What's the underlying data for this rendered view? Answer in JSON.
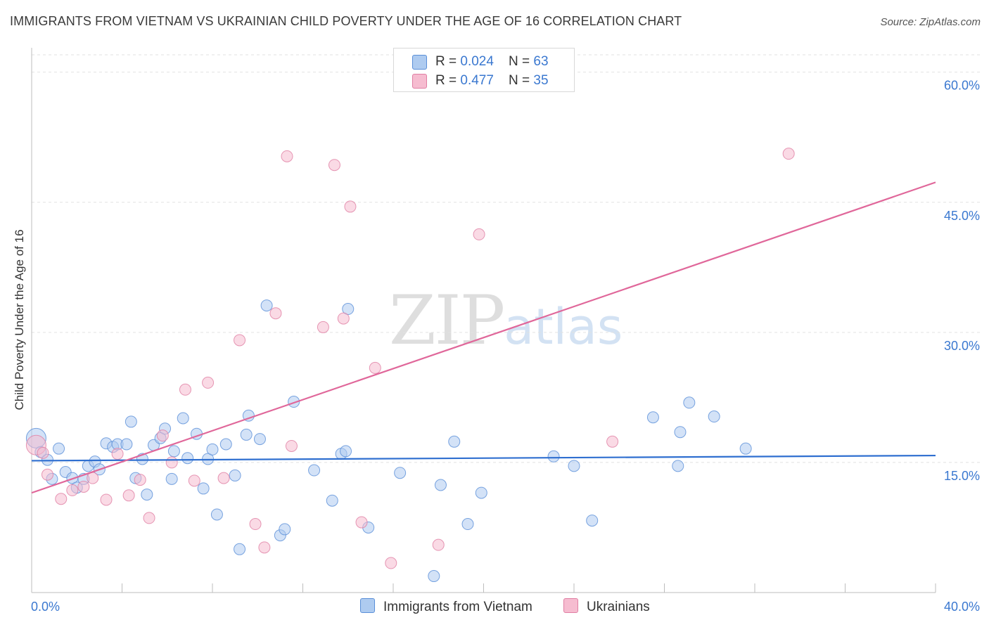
{
  "header": {
    "title": "IMMIGRANTS FROM VIETNAM VS UKRAINIAN CHILD POVERTY UNDER THE AGE OF 16 CORRELATION CHART",
    "source": "Source: ZipAtlas.com"
  },
  "watermark": {
    "zip": "ZIP",
    "atlas": "atlas"
  },
  "legend_top": {
    "rows": [
      {
        "r_label": "R = ",
        "r_value": "0.024",
        "n_label": "N = ",
        "n_value": "63",
        "color": "#aecbf0"
      },
      {
        "r_label": "R = ",
        "r_value": "0.477",
        "n_label": "N = ",
        "n_value": "35",
        "color": "#f6bcd0"
      }
    ]
  },
  "legend_bottom": {
    "items": [
      {
        "label": "Immigrants from Vietnam",
        "color": "#aecbf0"
      },
      {
        "label": "Ukrainians",
        "color": "#f6bcd0"
      }
    ]
  },
  "chart_data": {
    "type": "scatter",
    "title": "IMMIGRANTS FROM VIETNAM VS UKRAINIAN CHILD POVERTY UNDER THE AGE OF 16 CORRELATION CHART",
    "xlabel": "",
    "ylabel": "Child Poverty Under the Age of 16",
    "xlim": [
      0,
      40
    ],
    "ylim": [
      0,
      62
    ],
    "x_tick_labels": [
      "0.0%",
      "40.0%"
    ],
    "y_ticks": [
      15,
      30,
      45,
      60
    ],
    "y_tick_labels": [
      "15.0%",
      "30.0%",
      "45.0%",
      "60.0%"
    ],
    "grid": true,
    "series": [
      {
        "name": "Immigrants from Vietnam",
        "color": "#aecbf0",
        "stroke": "#5a8fd8",
        "trend": {
          "x": [
            0,
            40
          ],
          "y": [
            15.2,
            15.8
          ],
          "color": "#2f6fd0"
        },
        "points": [
          {
            "x": 0.2,
            "y": 17.8,
            "s": "l"
          },
          {
            "x": 0.4,
            "y": 16.2
          },
          {
            "x": 0.7,
            "y": 15.3
          },
          {
            "x": 0.9,
            "y": 13.1
          },
          {
            "x": 1.2,
            "y": 16.6
          },
          {
            "x": 1.5,
            "y": 13.9
          },
          {
            "x": 1.8,
            "y": 13.2
          },
          {
            "x": 2.0,
            "y": 12.1
          },
          {
            "x": 2.3,
            "y": 13.1
          },
          {
            "x": 2.5,
            "y": 14.6
          },
          {
            "x": 2.8,
            "y": 15.1
          },
          {
            "x": 3.0,
            "y": 14.2
          },
          {
            "x": 3.3,
            "y": 17.2
          },
          {
            "x": 3.6,
            "y": 16.8
          },
          {
            "x": 3.8,
            "y": 17.1
          },
          {
            "x": 4.2,
            "y": 17.1
          },
          {
            "x": 4.4,
            "y": 19.7
          },
          {
            "x": 4.6,
            "y": 13.2
          },
          {
            "x": 4.9,
            "y": 15.4
          },
          {
            "x": 5.1,
            "y": 11.3
          },
          {
            "x": 5.4,
            "y": 17.0
          },
          {
            "x": 5.7,
            "y": 17.8
          },
          {
            "x": 5.9,
            "y": 18.9
          },
          {
            "x": 6.2,
            "y": 13.1
          },
          {
            "x": 6.3,
            "y": 16.3
          },
          {
            "x": 6.7,
            "y": 20.1
          },
          {
            "x": 6.9,
            "y": 15.5
          },
          {
            "x": 7.3,
            "y": 18.3
          },
          {
            "x": 7.6,
            "y": 12.0
          },
          {
            "x": 7.8,
            "y": 15.4
          },
          {
            "x": 8.0,
            "y": 16.5
          },
          {
            "x": 8.2,
            "y": 9.0
          },
          {
            "x": 8.6,
            "y": 17.1
          },
          {
            "x": 9.0,
            "y": 13.5
          },
          {
            "x": 9.2,
            "y": 5.0
          },
          {
            "x": 9.5,
            "y": 18.2
          },
          {
            "x": 9.6,
            "y": 20.4
          },
          {
            "x": 10.1,
            "y": 17.7
          },
          {
            "x": 10.4,
            "y": 33.1
          },
          {
            "x": 11.0,
            "y": 6.6
          },
          {
            "x": 11.2,
            "y": 7.3
          },
          {
            "x": 11.6,
            "y": 22.0
          },
          {
            "x": 12.5,
            "y": 14.1
          },
          {
            "x": 13.3,
            "y": 10.6
          },
          {
            "x": 13.7,
            "y": 16.0
          },
          {
            "x": 13.9,
            "y": 16.3
          },
          {
            "x": 14.0,
            "y": 32.7
          },
          {
            "x": 14.9,
            "y": 7.5
          },
          {
            "x": 16.3,
            "y": 13.8
          },
          {
            "x": 17.8,
            "y": 1.9
          },
          {
            "x": 18.1,
            "y": 12.4
          },
          {
            "x": 18.7,
            "y": 17.4
          },
          {
            "x": 19.3,
            "y": 7.9
          },
          {
            "x": 19.9,
            "y": 11.5
          },
          {
            "x": 23.1,
            "y": 15.7
          },
          {
            "x": 24.0,
            "y": 14.6
          },
          {
            "x": 24.8,
            "y": 8.3
          },
          {
            "x": 27.5,
            "y": 20.2
          },
          {
            "x": 28.6,
            "y": 14.6
          },
          {
            "x": 28.7,
            "y": 18.5
          },
          {
            "x": 29.1,
            "y": 21.9
          },
          {
            "x": 30.2,
            "y": 20.3
          },
          {
            "x": 31.6,
            "y": 16.6
          }
        ]
      },
      {
        "name": "Ukrainians",
        "color": "#f6bcd0",
        "stroke": "#e07ea3",
        "trend": {
          "x": [
            0,
            40
          ],
          "y": [
            11.5,
            47.3
          ],
          "color": "#e0679a"
        },
        "points": [
          {
            "x": 0.2,
            "y": 17.0,
            "s": "l"
          },
          {
            "x": 0.7,
            "y": 13.6
          },
          {
            "x": 1.3,
            "y": 10.8
          },
          {
            "x": 1.8,
            "y": 11.8
          },
          {
            "x": 2.3,
            "y": 12.2
          },
          {
            "x": 2.7,
            "y": 13.2
          },
          {
            "x": 3.3,
            "y": 10.7
          },
          {
            "x": 3.8,
            "y": 16.0
          },
          {
            "x": 4.3,
            "y": 11.2
          },
          {
            "x": 4.8,
            "y": 13.0
          },
          {
            "x": 5.2,
            "y": 8.6
          },
          {
            "x": 5.8,
            "y": 18.1
          },
          {
            "x": 6.2,
            "y": 15.0
          },
          {
            "x": 6.8,
            "y": 23.4
          },
          {
            "x": 7.2,
            "y": 12.9
          },
          {
            "x": 7.8,
            "y": 24.2
          },
          {
            "x": 8.5,
            "y": 13.2
          },
          {
            "x": 9.2,
            "y": 29.1
          },
          {
            "x": 9.9,
            "y": 7.9
          },
          {
            "x": 10.3,
            "y": 5.2
          },
          {
            "x": 10.8,
            "y": 32.2
          },
          {
            "x": 11.3,
            "y": 50.3
          },
          {
            "x": 11.5,
            "y": 16.9
          },
          {
            "x": 12.9,
            "y": 30.6
          },
          {
            "x": 13.4,
            "y": 49.3
          },
          {
            "x": 13.8,
            "y": 31.6
          },
          {
            "x": 14.1,
            "y": 44.5
          },
          {
            "x": 14.6,
            "y": 8.1
          },
          {
            "x": 15.2,
            "y": 25.9
          },
          {
            "x": 15.9,
            "y": 3.4
          },
          {
            "x": 18.0,
            "y": 5.5
          },
          {
            "x": 19.8,
            "y": 41.3
          },
          {
            "x": 25.7,
            "y": 17.4
          },
          {
            "x": 33.5,
            "y": 50.6
          },
          {
            "x": 0.5,
            "y": 16.1
          }
        ]
      }
    ]
  }
}
